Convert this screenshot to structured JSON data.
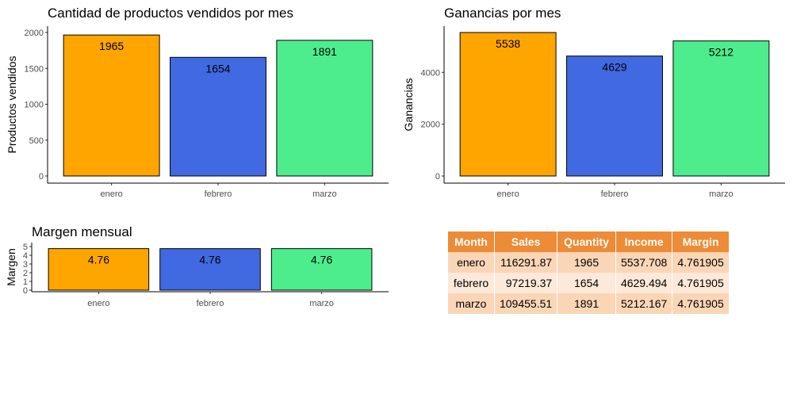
{
  "colors": {
    "enero": "#ffa500",
    "febrero": "#4169e1",
    "marzo": "#4ded8e"
  },
  "chart_data": [
    {
      "type": "bar",
      "title": "Cantidad de productos vendidos por mes",
      "xlabel": "",
      "ylabel": "Productos vendidos",
      "categories": [
        "enero",
        "febrero",
        "marzo"
      ],
      "values": [
        1965,
        1654,
        1891
      ],
      "data_labels": [
        "1965",
        "1654",
        "1891"
      ],
      "ylim": [
        0,
        2000
      ],
      "yticks": [
        0,
        500,
        1000,
        1500,
        2000
      ],
      "grid": false
    },
    {
      "type": "bar",
      "title": "Ganancias por mes",
      "xlabel": "",
      "ylabel": "Ganancias",
      "categories": [
        "enero",
        "febrero",
        "marzo"
      ],
      "values": [
        5537.708,
        4629.494,
        5212.167
      ],
      "data_labels": [
        "5538",
        "4629",
        "5212"
      ],
      "ylim": [
        0,
        5537.708
      ],
      "yticks": [
        0,
        2000,
        4000
      ],
      "grid": false
    },
    {
      "type": "bar",
      "title": "Margen mensual",
      "xlabel": "",
      "ylabel": "Margen",
      "categories": [
        "enero",
        "febrero",
        "marzo"
      ],
      "values": [
        4.761905,
        4.761905,
        4.761905
      ],
      "data_labels": [
        "4.76",
        "4.76",
        "4.76"
      ],
      "ylim": [
        0,
        5
      ],
      "yticks": [
        0,
        1,
        2,
        3,
        4,
        5
      ],
      "grid": false
    },
    {
      "type": "table",
      "columns": [
        "Month",
        "Sales",
        "Quantity",
        "Income",
        "Margin"
      ],
      "rows": [
        [
          "enero",
          "116291.87",
          "1965",
          "5537.708",
          "4.761905"
        ],
        [
          "febrero",
          "97219.37",
          "1654",
          "4629.494",
          "4.761905"
        ],
        [
          "marzo",
          "109455.51",
          "1891",
          "5212.167",
          "4.761905"
        ]
      ]
    }
  ]
}
